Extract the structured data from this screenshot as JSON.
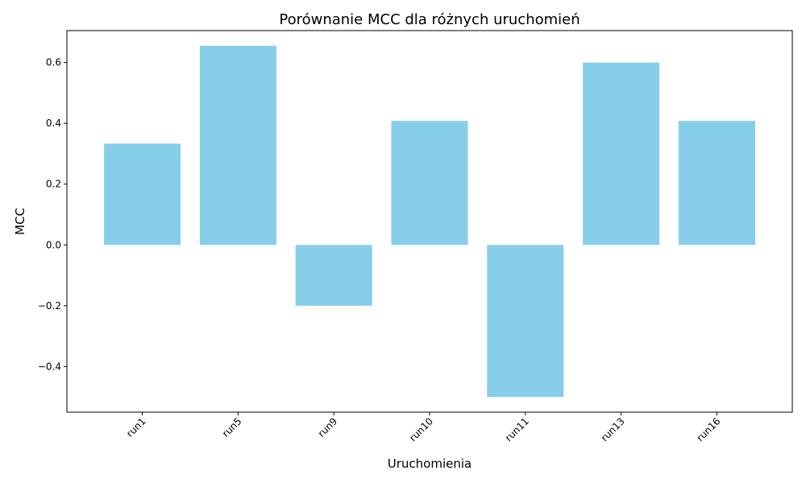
{
  "chart_data": {
    "type": "bar",
    "title": "Porównanie MCC dla różnych uruchomień",
    "xlabel": "Uruchomienia",
    "ylabel": "MCC",
    "categories": [
      "run1",
      "run5",
      "run9",
      "run10",
      "run11",
      "run13",
      "run16"
    ],
    "values": [
      0.333,
      0.655,
      -0.2,
      0.408,
      -0.5,
      0.6,
      0.408
    ],
    "ylim": [
      -0.55,
      0.705
    ],
    "yticks": [
      -0.4,
      -0.2,
      0.0,
      0.2,
      0.4,
      0.6
    ],
    "ytick_labels": [
      "−0.4",
      "−0.2",
      "0.0",
      "0.2",
      "0.4",
      "0.6"
    ],
    "bar_color": "#87CEEB",
    "grid": false,
    "legend": "none"
  }
}
